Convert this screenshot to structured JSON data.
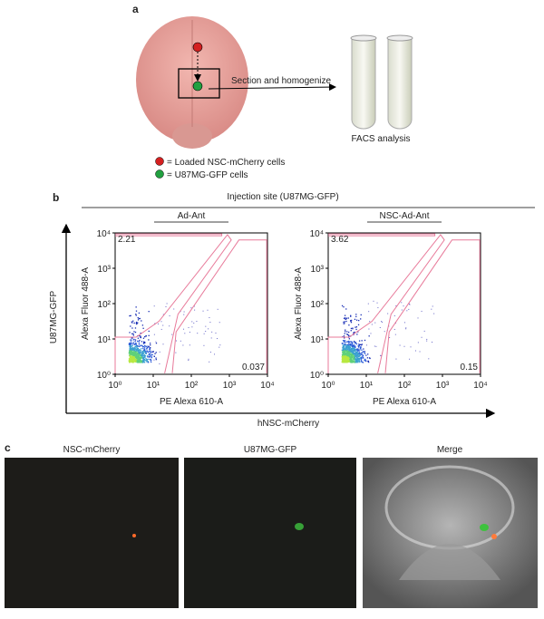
{
  "panel_a": {
    "label": "a",
    "arrow_text": "Section and homogenize",
    "tubes_caption": "FACS analysis",
    "legend": [
      "= Loaded NSC-mCherry cells",
      "= U87MG-GFP cells"
    ]
  },
  "panel_b": {
    "label": "b",
    "header": "Injection site (U87MG-GFP)",
    "y_axis_title": "U87MG-GFP",
    "x_axis_title": "hNSC-mCherry",
    "ticks": [
      "10⁰",
      "10¹",
      "10²",
      "10³",
      "10⁴"
    ],
    "plots": [
      {
        "title": "Ad-Ant",
        "y_label": "Alexa Fluor 488-A",
        "x_label": "PE Alexa 610-A",
        "upper_left": 2.21,
        "lower_right": 0.037
      },
      {
        "title": "NSC-Ad-Ant",
        "y_label": "Alexa Fluor 488-A",
        "x_label": "PE Alexa 610-A",
        "upper_left": 3.62,
        "lower_right": 0.15
      }
    ]
  },
  "panel_c": {
    "label": "c",
    "images": [
      "NSC-mCherry",
      "U87MG-GFP",
      "Merge"
    ]
  }
}
